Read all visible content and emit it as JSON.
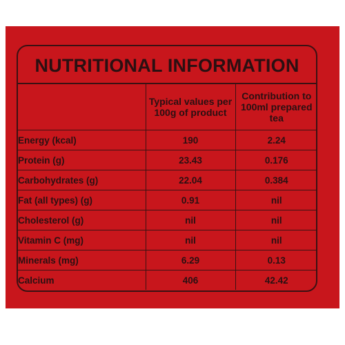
{
  "title": "NUTRITIONAL INFORMATION",
  "columns": [
    "",
    "Typical values per 100g of product",
    "Contribution to 100ml prepared tea"
  ],
  "rows": [
    {
      "name": "Energy (kcal)",
      "per100g": "190",
      "per100ml": "2.24"
    },
    {
      "name": "Protein (g)",
      "per100g": "23.43",
      "per100ml": "0.176"
    },
    {
      "name": "Carbohydrates (g)",
      "per100g": "22.04",
      "per100ml": "0.384"
    },
    {
      "name": "Fat (all types) (g)",
      "per100g": "0.91",
      "per100ml": "nil"
    },
    {
      "name": "Cholesterol (g)",
      "per100g": "nil",
      "per100ml": "nil"
    },
    {
      "name": "Vitamin C (mg)",
      "per100g": "nil",
      "per100ml": "nil"
    },
    {
      "name": "Minerals (mg)",
      "per100g": "6.29",
      "per100ml": "0.13"
    },
    {
      "name": "Calcium",
      "per100g": "406",
      "per100ml": "42.42"
    }
  ],
  "colors": {
    "background": "#c8161c",
    "ink": "#2a1012"
  }
}
